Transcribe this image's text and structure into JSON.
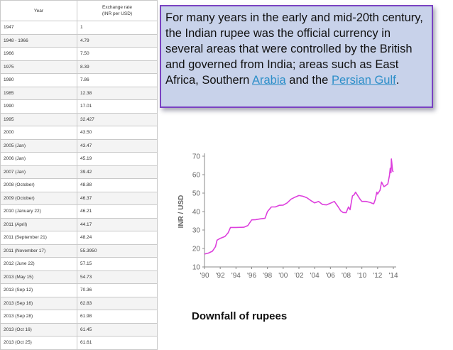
{
  "table": {
    "header_year": "Year",
    "header_rate_line1": "Exchange rate",
    "header_rate_line2": "(INR per USD)",
    "rows": [
      [
        "1947",
        "1"
      ],
      [
        "1948 - 1966",
        "4.79"
      ],
      [
        "1966",
        "7.50"
      ],
      [
        "1975",
        "8.39"
      ],
      [
        "1980",
        "7.86"
      ],
      [
        "1985",
        "12.38"
      ],
      [
        "1990",
        "17.01"
      ],
      [
        "1995",
        "32.427"
      ],
      [
        "2000",
        "43.50"
      ],
      [
        "2005 (Jan)",
        "43.47"
      ],
      [
        "2006 (Jan)",
        "45.19"
      ],
      [
        "2007 (Jan)",
        "39.42"
      ],
      [
        "2008 (October)",
        "48.88"
      ],
      [
        "2009 (October)",
        "46.37"
      ],
      [
        "2010 (January 22)",
        "46.21"
      ],
      [
        "2011 (April)",
        "44.17"
      ],
      [
        "2011 (September 21)",
        "48.24"
      ],
      [
        "2011 (November 17)",
        "55.3950"
      ],
      [
        "2012 (June 22)",
        "57.15"
      ],
      [
        "2013 (May 15)",
        "54.73"
      ],
      [
        "2013 (Sep 12)",
        "70.36"
      ],
      [
        "2013 (Sep 16)",
        "62.83"
      ],
      [
        "2013 (Sep 28)",
        "61.98"
      ],
      [
        "2013 (Oct 16)",
        "61.45"
      ],
      [
        "2013 (Oct 25)",
        "61.61"
      ]
    ]
  },
  "quote": {
    "text_before": "For many years in the early and mid-20th century, the Indian rupee was the official currency in several areas that were controlled by the British and governed from India; areas such as East Africa, Southern ",
    "link1": "Arabia",
    "text_middle": " and the ",
    "link2": "Persian Gulf",
    "text_after": "."
  },
  "caption": "Downfall of rupees",
  "colors": {
    "line": "#dd3fdd",
    "box_bg": "#c8d2ea",
    "box_border": "#7a42c2",
    "link": "#2e8fc9"
  },
  "chart_data": {
    "type": "line",
    "ylabel": "INR / USD",
    "xlabel": "",
    "x_tick_labels": [
      "'90",
      "'92",
      "'94",
      "'96",
      "'98",
      "'00",
      "'02",
      "'04",
      "'06",
      "'08",
      "'10",
      "'12",
      "'14"
    ],
    "y_ticks": [
      10,
      20,
      30,
      40,
      50,
      60,
      70
    ],
    "xlim": [
      1990,
      2014
    ],
    "ylim": [
      10,
      72
    ],
    "grid": false,
    "series": [
      {
        "x": [
          1990.0,
          1990.5,
          1991.0,
          1991.4,
          1991.6,
          1992.0,
          1992.6,
          1993.0,
          1993.3,
          1994.0,
          1995.0,
          1995.5,
          1996.0,
          1996.5,
          1997.0,
          1997.7,
          1998.0,
          1998.5,
          1999.0,
          1999.5,
          2000.0,
          2000.5,
          2001.0,
          2001.5,
          2002.0,
          2002.5,
          2003.0,
          2003.5,
          2004.0,
          2004.5,
          2005.0,
          2005.5,
          2006.0,
          2006.5,
          2007.0,
          2007.3,
          2007.6,
          2008.0,
          2008.3,
          2008.5,
          2008.8,
          2009.0,
          2009.2,
          2009.5,
          2009.8,
          2010.0,
          2010.5,
          2011.0,
          2011.5,
          2011.7,
          2011.9,
          2012.0,
          2012.3,
          2012.5,
          2012.8,
          2013.0,
          2013.3,
          2013.5,
          2013.6,
          2013.7,
          2013.75,
          2013.8,
          2013.9,
          2014.0
        ],
        "y": [
          17.0,
          17.5,
          18.5,
          21.0,
          24.5,
          25.5,
          26.5,
          28.5,
          31.4,
          31.4,
          31.5,
          32.4,
          35.5,
          35.6,
          36.0,
          36.4,
          40.0,
          42.5,
          42.5,
          43.4,
          43.5,
          44.7,
          46.7,
          47.8,
          48.7,
          48.3,
          47.5,
          46.0,
          44.7,
          45.5,
          43.8,
          43.6,
          44.5,
          45.5,
          42.5,
          40.5,
          39.5,
          39.4,
          42.5,
          41.0,
          48.5,
          49.0,
          50.5,
          48.5,
          46.5,
          45.5,
          45.5,
          45.0,
          44.2,
          46.5,
          50.5,
          49.5,
          51.5,
          56.0,
          53.5,
          54.0,
          55.0,
          59.5,
          63.5,
          61.0,
          68.5,
          66.5,
          62.0,
          61.5
        ]
      }
    ]
  }
}
